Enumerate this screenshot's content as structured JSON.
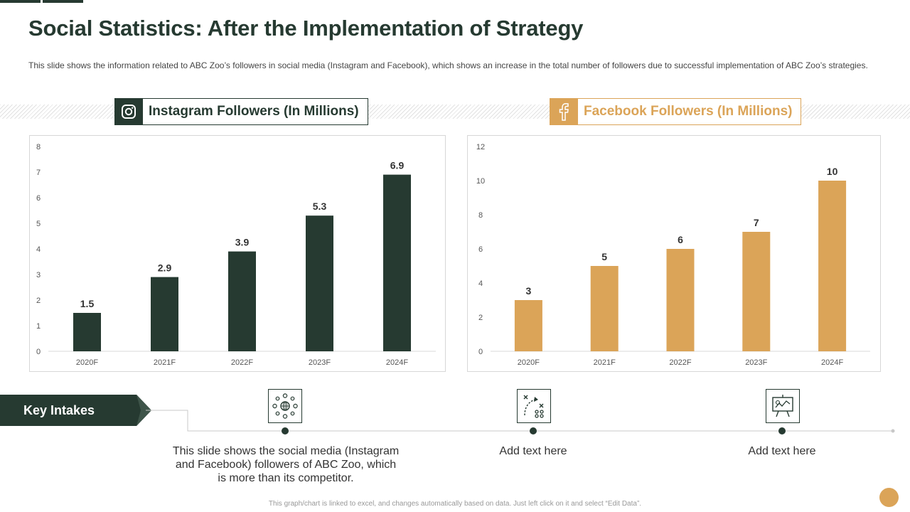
{
  "slide": {
    "title": "Social Statistics: After the Implementation of Strategy",
    "description": "This slide shows the information related to ABC Zoo’s followers in social media (Instagram and Facebook), which shows an increase in the total number of followers due to successful implementation of ABC Zoo’s strategies.",
    "footer_note": "This graph/chart is linked to excel, and changes automatically based on data. Just left click on it and select “Edit Data”."
  },
  "colors": {
    "dark_green": "#263a31",
    "gold": "#dba458"
  },
  "headers": {
    "instagram": {
      "label": "Instagram Followers (In Millions)",
      "icon": "instagram-icon"
    },
    "facebook": {
      "label": "Facebook Followers (In Millions)",
      "icon": "facebook-icon"
    }
  },
  "chart_data": [
    {
      "type": "bar",
      "title": "Instagram Followers (In Millions)",
      "categories": [
        "2020F",
        "2021F",
        "2022F",
        "2023F",
        "2024F"
      ],
      "values": [
        1.5,
        2.9,
        3.9,
        5.3,
        6.9
      ],
      "value_labels": [
        "1.5",
        "2.9",
        "3.9",
        "5.3",
        "6.9"
      ],
      "ylim": [
        0,
        8
      ],
      "yticks": [
        "0",
        "1",
        "2",
        "3",
        "4",
        "5",
        "6",
        "7",
        "8"
      ],
      "color": "#263a31",
      "xlabel": "",
      "ylabel": "",
      "grid": false
    },
    {
      "type": "bar",
      "title": "Facebook Followers (In Millions)",
      "categories": [
        "2020F",
        "2021F",
        "2022F",
        "2023F",
        "2024F"
      ],
      "values": [
        3,
        5,
        6,
        7,
        10
      ],
      "value_labels": [
        "3",
        "5",
        "6",
        "7",
        "10"
      ],
      "ylim": [
        0,
        12
      ],
      "yticks": [
        "0",
        "2",
        "4",
        "6",
        "8",
        "10",
        "12"
      ],
      "color": "#dba458",
      "xlabel": "",
      "ylabel": "",
      "grid": false
    }
  ],
  "key_intakes": {
    "label": "Key Intakes",
    "items": [
      {
        "icon": "social-network-globe-icon",
        "text": "This slide shows the social media (Instagram and Facebook) followers of ABC Zoo, which is more than its competitor."
      },
      {
        "icon": "strategy-play-icon",
        "text": "Add text here"
      },
      {
        "icon": "presentation-board-icon",
        "text": "Add text here"
      }
    ]
  }
}
